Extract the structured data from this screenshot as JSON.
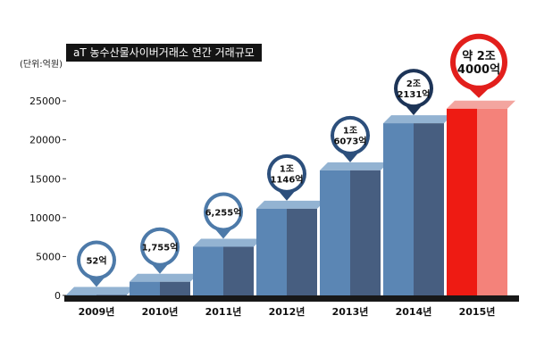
{
  "chart_data": {
    "type": "bar",
    "title": "aT 농수산물사이버거래소 연간 거래규모",
    "unit": "(단위:억원)",
    "categories": [
      "2009년",
      "2010년",
      "2011년",
      "2012년",
      "2013년",
      "2014년",
      "2015년"
    ],
    "values": [
      52,
      1755,
      6255,
      11146,
      16073,
      22131,
      24000
    ],
    "data_labels": [
      "52억",
      "1,755억",
      "6,255억",
      "1조\n1146억",
      "1조\n6073억",
      "2조\n2131억",
      "약 2조\n4000억"
    ],
    "yticks": [
      0,
      5000,
      10000,
      15000,
      20000,
      25000
    ],
    "ylim": [
      0,
      30000
    ],
    "grid": false,
    "colors": {
      "bar_front": "#5b86b4",
      "bar_side": "#475e80",
      "bar_top": "#93b3d2",
      "highlight_front": "#ee1b13",
      "highlight_side": "#f4827a",
      "highlight_top": "#f3a59f",
      "pin_light": "#4d7aa9",
      "pin_mid": "#2c4f7c",
      "pin_dark": "#1d3457",
      "pin_highlight": "#e21f1c",
      "axis_band": "#181818"
    }
  }
}
